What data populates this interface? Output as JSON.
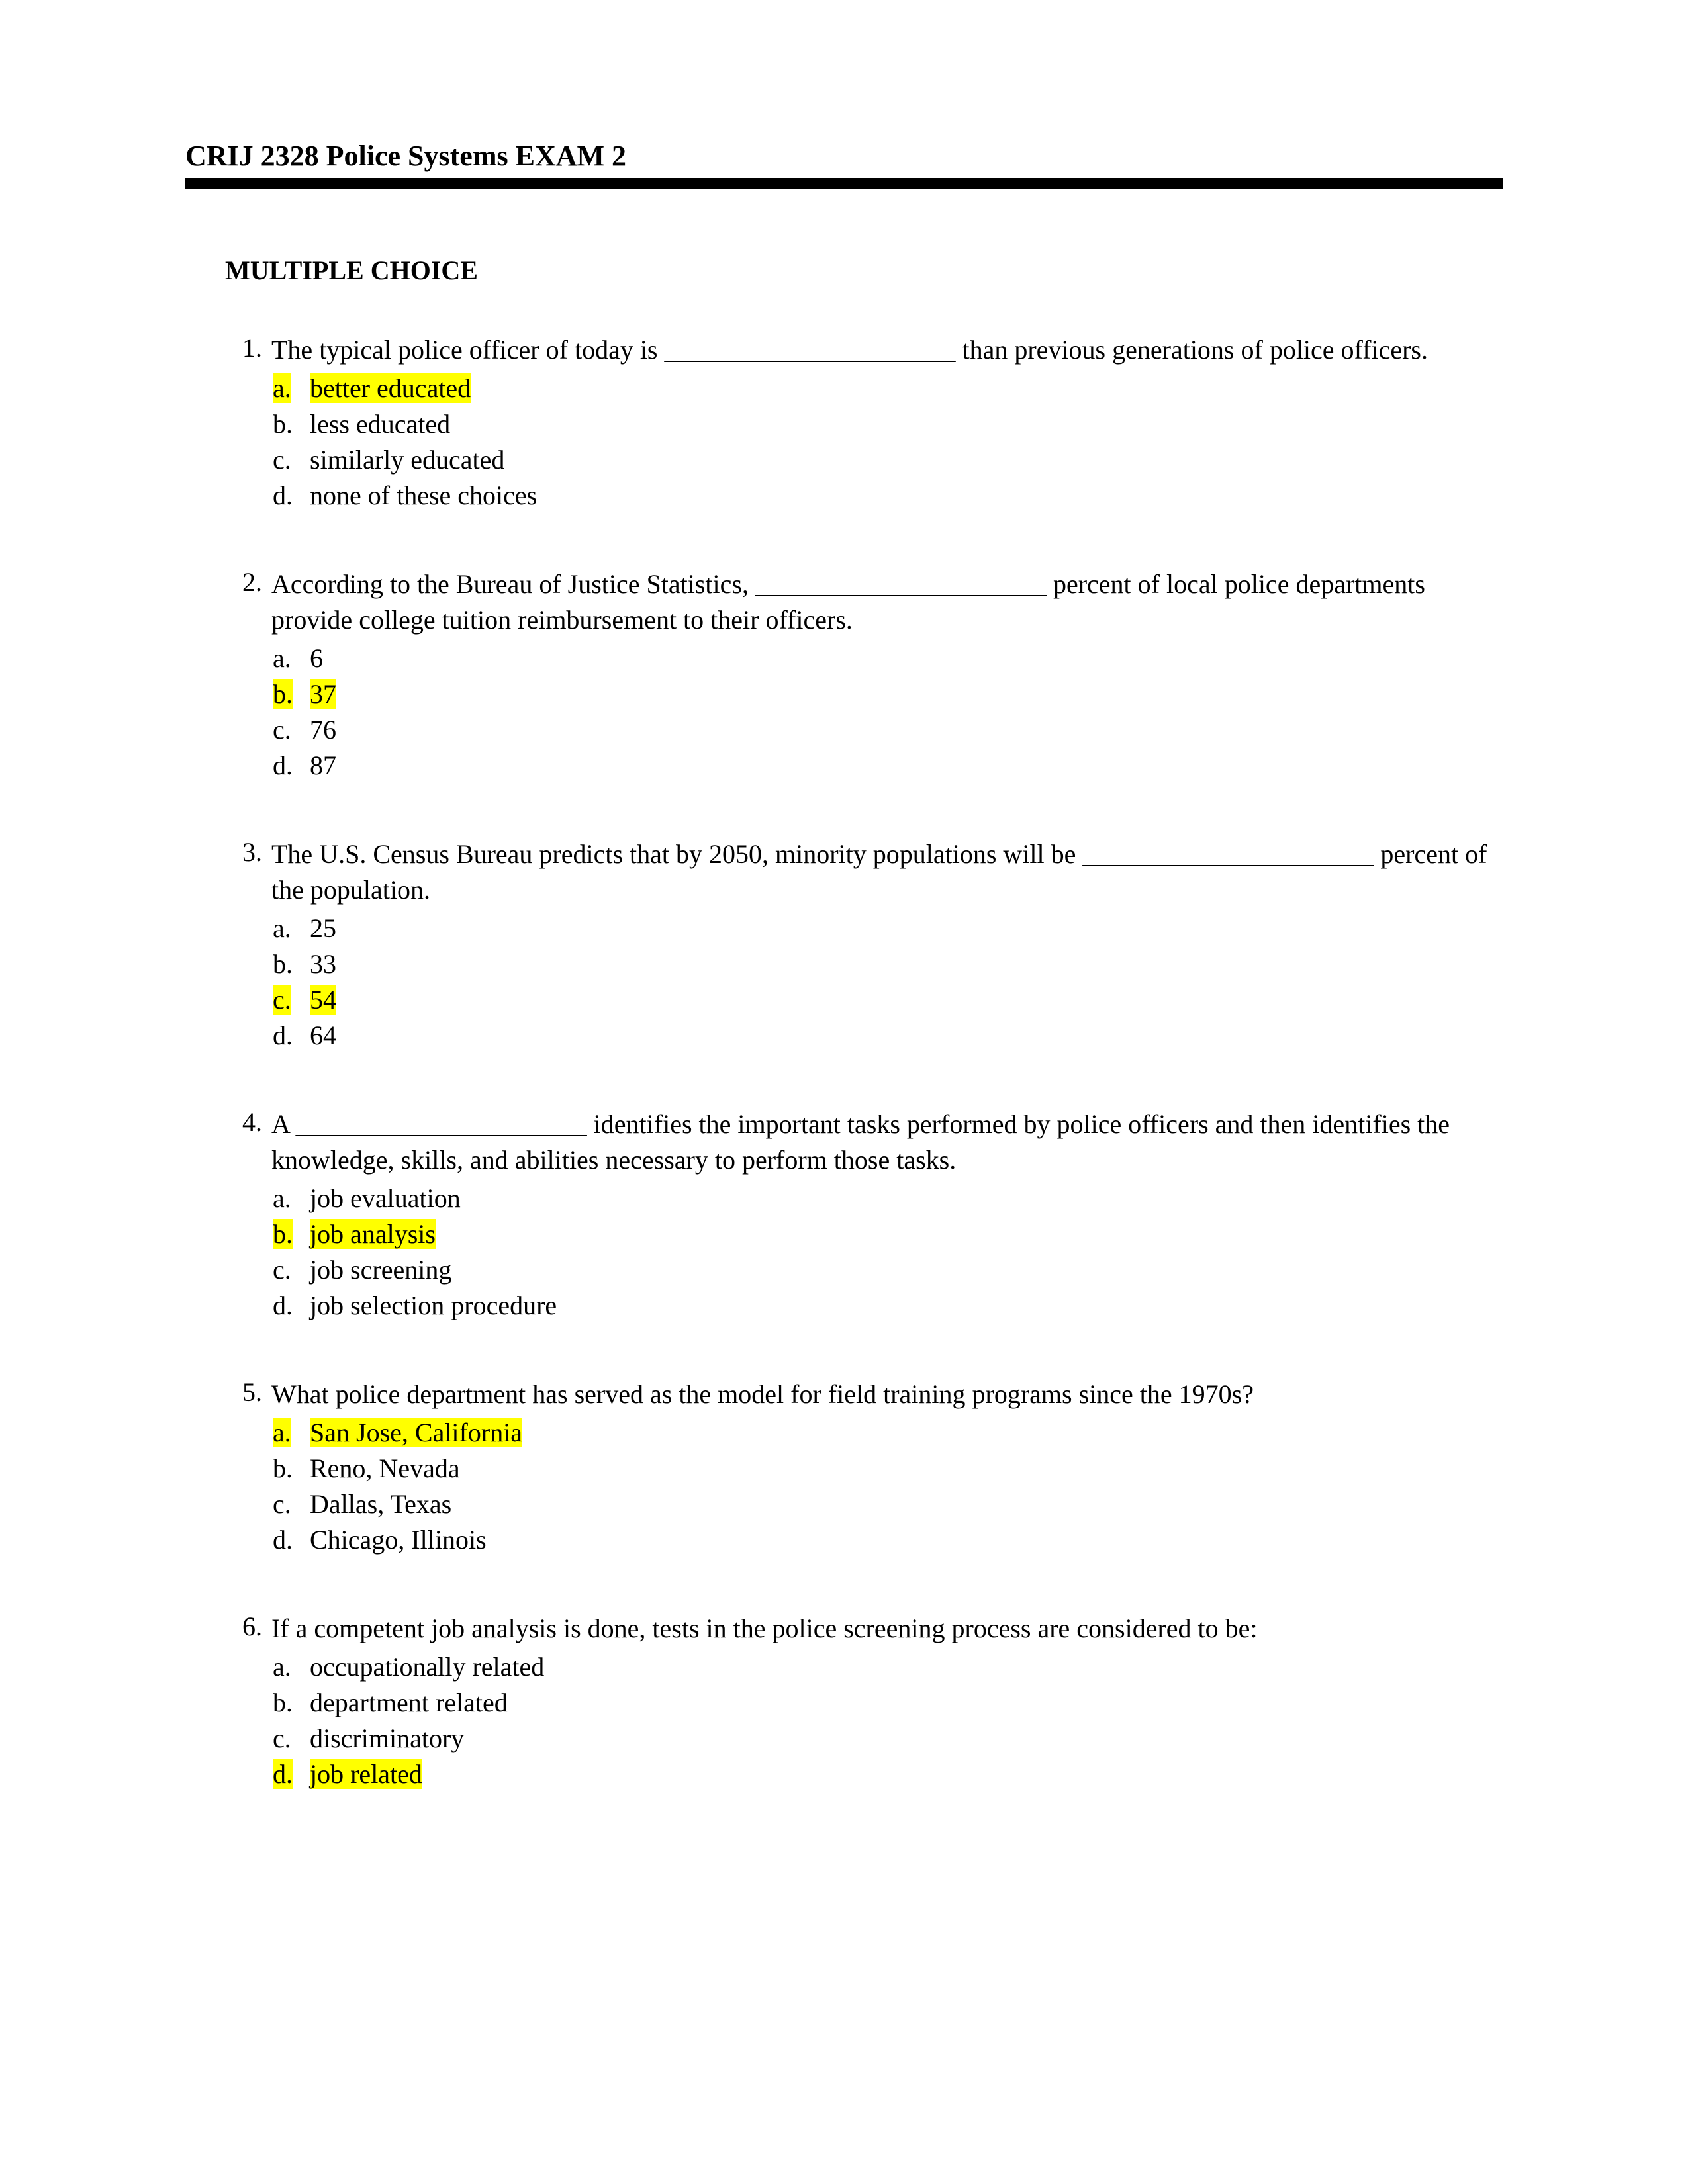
{
  "header": {
    "title": "CRIJ 2328 Police Systems EXAM 2"
  },
  "section_title": "MULTIPLE CHOICE",
  "highlight_color": "#ffff00",
  "questions": [
    {
      "num": "1.",
      "text": "The typical police officer of today is ______________________ than previous generations of police officers.",
      "choices": [
        {
          "letter": "a.",
          "text": "better educated",
          "highlighted": true
        },
        {
          "letter": "b.",
          "text": "less educated",
          "highlighted": false
        },
        {
          "letter": "c.",
          "text": "similarly educated",
          "highlighted": false
        },
        {
          "letter": "d.",
          "text": "none of these choices",
          "highlighted": false
        }
      ]
    },
    {
      "num": "2.",
      "text": "According to the Bureau of Justice Statistics, ______________________ percent of local police departments provide college tuition reimbursement to their officers.",
      "choices": [
        {
          "letter": "a.",
          "text": "6",
          "highlighted": false
        },
        {
          "letter": "b.",
          "text": "37",
          "highlighted": true
        },
        {
          "letter": "c.",
          "text": "76",
          "highlighted": false
        },
        {
          "letter": "d.",
          "text": "87",
          "highlighted": false
        }
      ]
    },
    {
      "num": "3.",
      "text": "The U.S. Census Bureau predicts that by 2050, minority populations will be ______________________ percent of the population.",
      "choices": [
        {
          "letter": "a.",
          "text": "25",
          "highlighted": false
        },
        {
          "letter": "b.",
          "text": "33",
          "highlighted": false
        },
        {
          "letter": "c.",
          "text": "54",
          "highlighted": true
        },
        {
          "letter": "d.",
          "text": "64",
          "highlighted": false
        }
      ]
    },
    {
      "num": "4.",
      "text": "A ______________________ identifies the important tasks performed by police officers and then identifies the knowledge, skills, and abilities necessary to perform those tasks.",
      "choices": [
        {
          "letter": "a.",
          "text": "job evaluation",
          "highlighted": false
        },
        {
          "letter": "b.",
          "text": "job analysis",
          "highlighted": true
        },
        {
          "letter": "c.",
          "text": "job screening",
          "highlighted": false
        },
        {
          "letter": "d.",
          "text": "job selection procedure",
          "highlighted": false
        }
      ]
    },
    {
      "num": "5.",
      "text": "What police department has served as the model for field training programs since the 1970s?",
      "choices": [
        {
          "letter": "a.",
          "text": "San Jose, California",
          "highlighted": true
        },
        {
          "letter": "b.",
          "text": "Reno, Nevada",
          "highlighted": false
        },
        {
          "letter": "c.",
          "text": "Dallas, Texas",
          "highlighted": false
        },
        {
          "letter": "d.",
          "text": "Chicago, Illinois",
          "highlighted": false
        }
      ]
    },
    {
      "num": "6.",
      "text": "If a competent job analysis is done, tests in the police screening process are considered to be:",
      "choices": [
        {
          "letter": "a.",
          "text": "occupationally related",
          "highlighted": false
        },
        {
          "letter": "b.",
          "text": "department related",
          "highlighted": false
        },
        {
          "letter": "c.",
          "text": "discriminatory",
          "highlighted": false
        },
        {
          "letter": "d.",
          "text": "job related",
          "highlighted": true
        }
      ]
    }
  ]
}
